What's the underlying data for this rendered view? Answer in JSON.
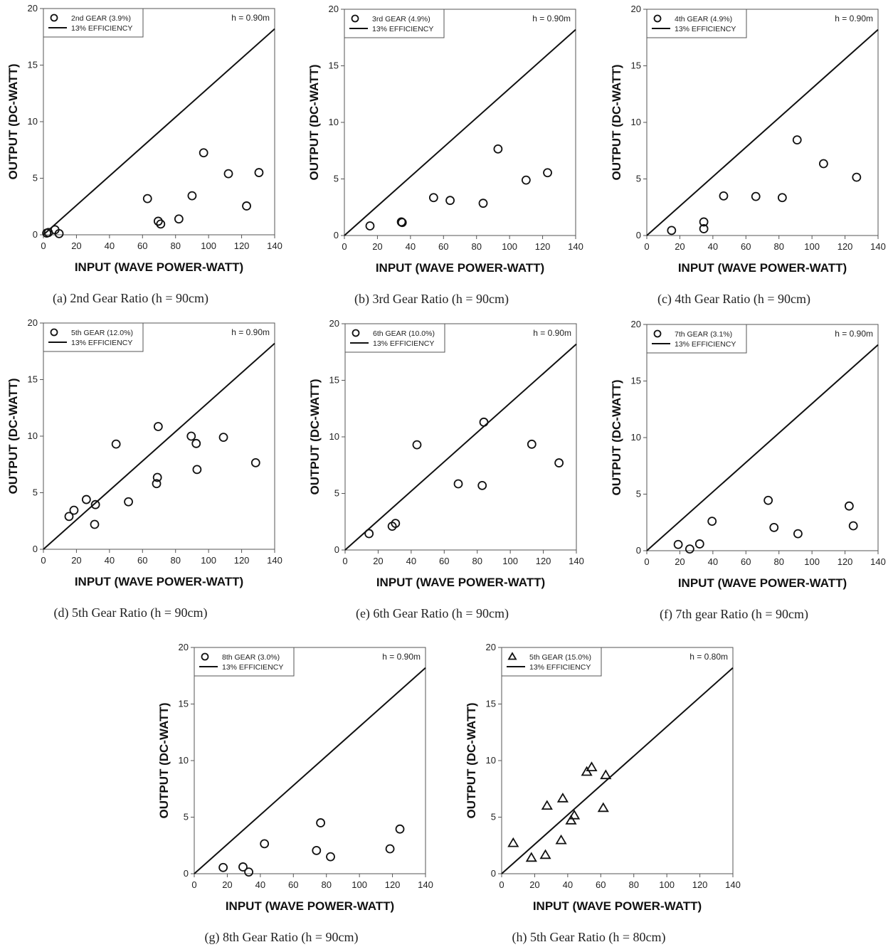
{
  "figure": {
    "x_axis_label": "INPUT (WAVE POWER-WATT)",
    "y_axis_label": "OUTPUT (DC-WATT)",
    "efficiency_label": "13% EFFICIENCY"
  },
  "chart_data": [
    {
      "id": "a",
      "type": "scatter",
      "caption": "(a)  2nd  Gear  Ratio  (h  =  90cm)",
      "legend": [
        "2nd GEAR (3.9%)",
        "13% EFFICIENCY"
      ],
      "legend_position": "top-left",
      "annotation": "h = 0.90m",
      "marker": "circle",
      "xlabel": "INPUT (WAVE POWER-WATT)",
      "ylabel": "OUTPUT (DC-WATT)",
      "xlim": [
        0,
        140
      ],
      "ylim": [
        0,
        20
      ],
      "xticks": [
        0,
        20,
        40,
        60,
        80,
        100,
        120,
        140
      ],
      "yticks": [
        0,
        5,
        10,
        15,
        20
      ],
      "efficiency": 0.13,
      "points": [
        [
          2,
          0.15
        ],
        [
          3,
          0.2
        ],
        [
          7,
          0.45
        ],
        [
          9.5,
          0.1
        ],
        [
          63,
          3.2
        ],
        [
          69.5,
          1.2
        ],
        [
          71,
          0.95
        ],
        [
          82,
          1.4
        ],
        [
          90,
          3.45
        ],
        [
          97,
          7.25
        ],
        [
          112,
          5.4
        ],
        [
          123,
          2.55
        ],
        [
          130.5,
          5.5
        ]
      ]
    },
    {
      "id": "b",
      "type": "scatter",
      "caption": "(b)  3rd  Gear  Ratio  (h  =  90cm)",
      "legend": [
        "3rd GEAR (4.9%)",
        "13% EFFICIENCY"
      ],
      "legend_position": "top-left",
      "annotation": "h = 0.90m",
      "marker": "circle",
      "xlabel": "INPUT (WAVE POWER-WATT)",
      "ylabel": "OUTPUT (DC-WATT)",
      "xlim": [
        0,
        140
      ],
      "ylim": [
        0,
        20
      ],
      "xticks": [
        0,
        20,
        40,
        60,
        80,
        100,
        120,
        140
      ],
      "yticks": [
        0,
        5,
        10,
        15,
        20
      ],
      "efficiency": 0.13,
      "points": [
        [
          15.5,
          0.85
        ],
        [
          34.5,
          1.2
        ],
        [
          35,
          1.15
        ],
        [
          54,
          3.35
        ],
        [
          64,
          3.1
        ],
        [
          84,
          2.85
        ],
        [
          93,
          7.65
        ],
        [
          110,
          4.9
        ],
        [
          123,
          5.55
        ]
      ]
    },
    {
      "id": "c",
      "type": "scatter",
      "caption": "(c)  4th  Gear  Ratio  (h  =  90cm)",
      "legend": [
        "4th GEAR (4.9%)",
        "13% EFFICIENCY"
      ],
      "legend_position": "top-left",
      "annotation": "h = 0.90m",
      "marker": "circle",
      "xlabel": "INPUT (WAVE POWER-WATT)",
      "ylabel": "OUTPUT (DC-WATT)",
      "xlim": [
        0,
        140
      ],
      "ylim": [
        0,
        20
      ],
      "xticks": [
        0,
        20,
        40,
        60,
        80,
        100,
        120,
        140
      ],
      "yticks": [
        0,
        5,
        10,
        15,
        20
      ],
      "efficiency": 0.13,
      "points": [
        [
          15,
          0.45
        ],
        [
          34.5,
          1.2
        ],
        [
          34.5,
          0.6
        ],
        [
          46.5,
          3.5
        ],
        [
          66,
          3.45
        ],
        [
          82,
          3.35
        ],
        [
          91,
          8.45
        ],
        [
          107,
          6.35
        ],
        [
          127,
          5.15
        ]
      ]
    },
    {
      "id": "d",
      "type": "scatter",
      "caption": "(d)  5th  Gear  Ratio  (h  =  90cm)",
      "legend": [
        "5th GEAR (12.0%)",
        "13% EFFICIENCY"
      ],
      "legend_position": "top-left",
      "annotation": "h = 0.90m",
      "marker": "circle",
      "xlabel": "INPUT (WAVE POWER-WATT)",
      "ylabel": "OUTPUT (DC-WATT)",
      "xlim": [
        0,
        140
      ],
      "ylim": [
        0,
        20
      ],
      "xticks": [
        0,
        20,
        40,
        60,
        80,
        100,
        120,
        140
      ],
      "yticks": [
        0,
        5,
        10,
        15,
        20
      ],
      "efficiency": 0.13,
      "points": [
        [
          15.5,
          2.9
        ],
        [
          18.5,
          3.45
        ],
        [
          26,
          4.4
        ],
        [
          31,
          2.2
        ],
        [
          31.5,
          3.95
        ],
        [
          44,
          9.3
        ],
        [
          51.5,
          4.2
        ],
        [
          68.5,
          5.8
        ],
        [
          69,
          6.35
        ],
        [
          69.5,
          10.85
        ],
        [
          89.5,
          10.0
        ],
        [
          92.5,
          9.35
        ],
        [
          93,
          7.05
        ],
        [
          109,
          9.9
        ],
        [
          128.5,
          7.65
        ]
      ]
    },
    {
      "id": "e",
      "type": "scatter",
      "caption": "(e)  6th  Gear  Ratio  (h  =  90cm)",
      "legend": [
        "6th GEAR (10.0%)",
        "13% EFFICIENCY"
      ],
      "legend_position": "top-left",
      "annotation": "h = 0.90m",
      "marker": "circle",
      "xlabel": "INPUT (WAVE POWER-WATT)",
      "ylabel": "OUTPUT (DC-WATT)",
      "xlim": [
        0,
        140
      ],
      "ylim": [
        0,
        20
      ],
      "xticks": [
        0,
        20,
        40,
        60,
        80,
        100,
        120,
        140
      ],
      "yticks": [
        0,
        5,
        10,
        15,
        20
      ],
      "efficiency": 0.13,
      "points": [
        [
          14.5,
          1.45
        ],
        [
          28.5,
          2.1
        ],
        [
          30.5,
          2.35
        ],
        [
          43.5,
          9.3
        ],
        [
          68.5,
          5.85
        ],
        [
          83,
          5.7
        ],
        [
          84,
          11.3
        ],
        [
          113,
          9.35
        ],
        [
          129.5,
          7.7
        ]
      ]
    },
    {
      "id": "f",
      "type": "scatter",
      "caption": "(f)  7th  gear  Ratio  (h  =  90cm)",
      "legend": [
        "7th GEAR (3.1%)",
        "13% EFFICIENCY"
      ],
      "legend_position": "top-left",
      "annotation": "h = 0.90m",
      "marker": "circle",
      "xlabel": "INPUT (WAVE POWER-WATT)",
      "ylabel": "OUTPUT (DC-WATT)",
      "xlim": [
        0,
        140
      ],
      "ylim": [
        0,
        20
      ],
      "xticks": [
        0,
        20,
        40,
        60,
        80,
        100,
        120,
        140
      ],
      "yticks": [
        0,
        5,
        10,
        15,
        20
      ],
      "efficiency": 0.13,
      "points": [
        [
          19,
          0.55
        ],
        [
          26,
          0.15
        ],
        [
          32,
          0.6
        ],
        [
          39.5,
          2.6
        ],
        [
          73.5,
          4.45
        ],
        [
          77,
          2.05
        ],
        [
          91.5,
          1.5
        ],
        [
          122.5,
          3.95
        ],
        [
          125,
          2.2
        ]
      ]
    },
    {
      "id": "g",
      "type": "scatter",
      "caption": "(g)  8th  Gear  Ratio  (h  =  90cm)",
      "legend": [
        "8th GEAR (3.0%)",
        "13% EFFICIENCY"
      ],
      "legend_position": "top-left",
      "annotation": "h = 0.90m",
      "marker": "circle",
      "xlabel": "INPUT (WAVE POWER-WATT)",
      "ylabel": "OUTPUT (DC-WATT)",
      "xlim": [
        0,
        140
      ],
      "ylim": [
        0,
        20
      ],
      "xticks": [
        0,
        20,
        40,
        60,
        80,
        100,
        120,
        140
      ],
      "yticks": [
        0,
        5,
        10,
        15,
        20
      ],
      "efficiency": 0.13,
      "points": [
        [
          17.5,
          0.55
        ],
        [
          29.5,
          0.6
        ],
        [
          33,
          0.15
        ],
        [
          42.5,
          2.65
        ],
        [
          74,
          2.05
        ],
        [
          76.5,
          4.5
        ],
        [
          82.5,
          1.5
        ],
        [
          118.5,
          2.2
        ],
        [
          124.5,
          3.95
        ]
      ]
    },
    {
      "id": "h",
      "type": "scatter",
      "caption": "(h)  5th  Gear  Ratio  (h  =  80cm)",
      "legend": [
        "5th GEAR (15.0%)",
        "13% EFFICIENCY"
      ],
      "legend_position": "top-left",
      "annotation": "h = 0.80m",
      "marker": "triangle",
      "xlabel": "INPUT (WAVE POWER-WATT)",
      "ylabel": "OUTPUT (DC-WATT)",
      "xlim": [
        0,
        140
      ],
      "ylim": [
        0,
        20
      ],
      "xticks": [
        0,
        20,
        40,
        60,
        80,
        100,
        120,
        140
      ],
      "yticks": [
        0,
        5,
        10,
        15,
        20
      ],
      "efficiency": 0.13,
      "points": [
        [
          7,
          2.7
        ],
        [
          18,
          1.4
        ],
        [
          26.5,
          1.65
        ],
        [
          27.5,
          6.0
        ],
        [
          36,
          2.95
        ],
        [
          37,
          6.65
        ],
        [
          42,
          4.7
        ],
        [
          44,
          5.15
        ],
        [
          51.5,
          9.0
        ],
        [
          54.5,
          9.4
        ],
        [
          61.5,
          5.8
        ],
        [
          63,
          8.7
        ]
      ]
    }
  ]
}
